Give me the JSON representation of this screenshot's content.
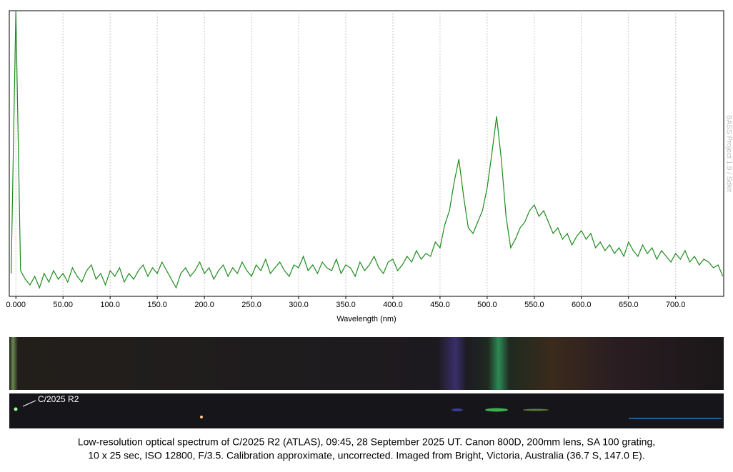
{
  "chart_data": {
    "type": "line",
    "x_label": "Wavelength (nm)",
    "watermark": "BASS Project 1.9 / Sdkit",
    "image_label": "C/2025 R2",
    "caption": [
      "Low-resolution optical spectrum of C/2025 R2 (ATLAS), 09:45, 28 September 2025 UT. Canon 800D, 200mm lens, SA 100 grating,",
      "10 x 25 sec, ISO 12800, F/3.5. Calibration approximate, uncorrected. Imaged from Bright, Victoria, Australia (36.7 S, 147.0 E)."
    ],
    "color": "#1e8a1e",
    "grid": true,
    "xlim": [
      -7,
      751
    ],
    "ylim": [
      0,
      100
    ],
    "xticks": [
      {
        "value": 0,
        "label": "0.000"
      },
      {
        "value": 50,
        "label": "50.00"
      },
      {
        "value": 100,
        "label": "100.0"
      },
      {
        "value": 150,
        "label": "150.0"
      },
      {
        "value": 200,
        "label": "200.0"
      },
      {
        "value": 250,
        "label": "250.0"
      },
      {
        "value": 300,
        "label": "300.0"
      },
      {
        "value": 350,
        "label": "350.0"
      },
      {
        "value": 400,
        "label": "400.0"
      },
      {
        "value": 450,
        "label": "450.0"
      },
      {
        "value": 500,
        "label": "500.0"
      },
      {
        "value": 550,
        "label": "550.0"
      },
      {
        "value": 600,
        "label": "600.0"
      },
      {
        "value": 650,
        "label": "650.0"
      },
      {
        "value": 700,
        "label": "700.0"
      }
    ],
    "x": [
      -5,
      0,
      5,
      10,
      15,
      20,
      25,
      30,
      35,
      40,
      45,
      50,
      55,
      60,
      65,
      70,
      75,
      80,
      85,
      90,
      95,
      100,
      105,
      110,
      115,
      120,
      125,
      130,
      135,
      140,
      145,
      150,
      155,
      160,
      165,
      170,
      175,
      180,
      185,
      190,
      195,
      200,
      205,
      210,
      215,
      220,
      225,
      230,
      235,
      240,
      245,
      250,
      255,
      260,
      265,
      270,
      275,
      280,
      285,
      290,
      295,
      300,
      305,
      310,
      315,
      320,
      325,
      330,
      335,
      340,
      345,
      350,
      355,
      360,
      365,
      370,
      375,
      380,
      385,
      390,
      395,
      400,
      405,
      410,
      415,
      420,
      425,
      430,
      435,
      440,
      445,
      450,
      455,
      460,
      465,
      470,
      475,
      480,
      485,
      490,
      495,
      500,
      505,
      510,
      515,
      520,
      525,
      530,
      535,
      540,
      545,
      550,
      555,
      560,
      565,
      570,
      575,
      580,
      585,
      590,
      595,
      600,
      605,
      610,
      615,
      620,
      625,
      630,
      635,
      640,
      645,
      650,
      655,
      660,
      665,
      670,
      675,
      680,
      685,
      690,
      695,
      700,
      705,
      710,
      715,
      720,
      725,
      730,
      735,
      740,
      745,
      750
    ],
    "values": [
      8,
      100,
      9,
      6,
      4,
      7,
      3,
      8,
      5,
      9,
      6,
      8,
      5,
      10,
      7,
      5,
      9,
      11,
      6,
      8,
      4,
      9,
      7,
      10,
      5,
      8,
      6,
      9,
      11,
      7,
      10,
      8,
      12,
      9,
      6,
      3,
      8,
      10,
      7,
      9,
      12,
      8,
      10,
      6,
      9,
      11,
      7,
      10,
      8,
      12,
      9,
      7,
      11,
      9,
      13,
      8,
      10,
      12,
      9,
      7,
      11,
      10,
      14,
      9,
      11,
      8,
      12,
      10,
      9,
      13,
      8,
      11,
      10,
      7,
      12,
      9,
      11,
      14,
      10,
      8,
      12,
      13,
      9,
      11,
      14,
      12,
      16,
      13,
      15,
      14,
      19,
      17,
      25,
      30,
      40,
      48,
      35,
      24,
      22,
      26,
      30,
      38,
      50,
      63,
      48,
      28,
      17,
      20,
      24,
      26,
      30,
      32,
      28,
      30,
      26,
      22,
      24,
      20,
      22,
      18,
      21,
      23,
      20,
      22,
      17,
      19,
      16,
      18,
      15,
      17,
      14,
      19,
      16,
      14,
      18,
      15,
      17,
      13,
      16,
      14,
      12,
      15,
      13,
      16,
      12,
      14,
      11,
      13,
      12,
      10,
      11,
      7
    ]
  }
}
